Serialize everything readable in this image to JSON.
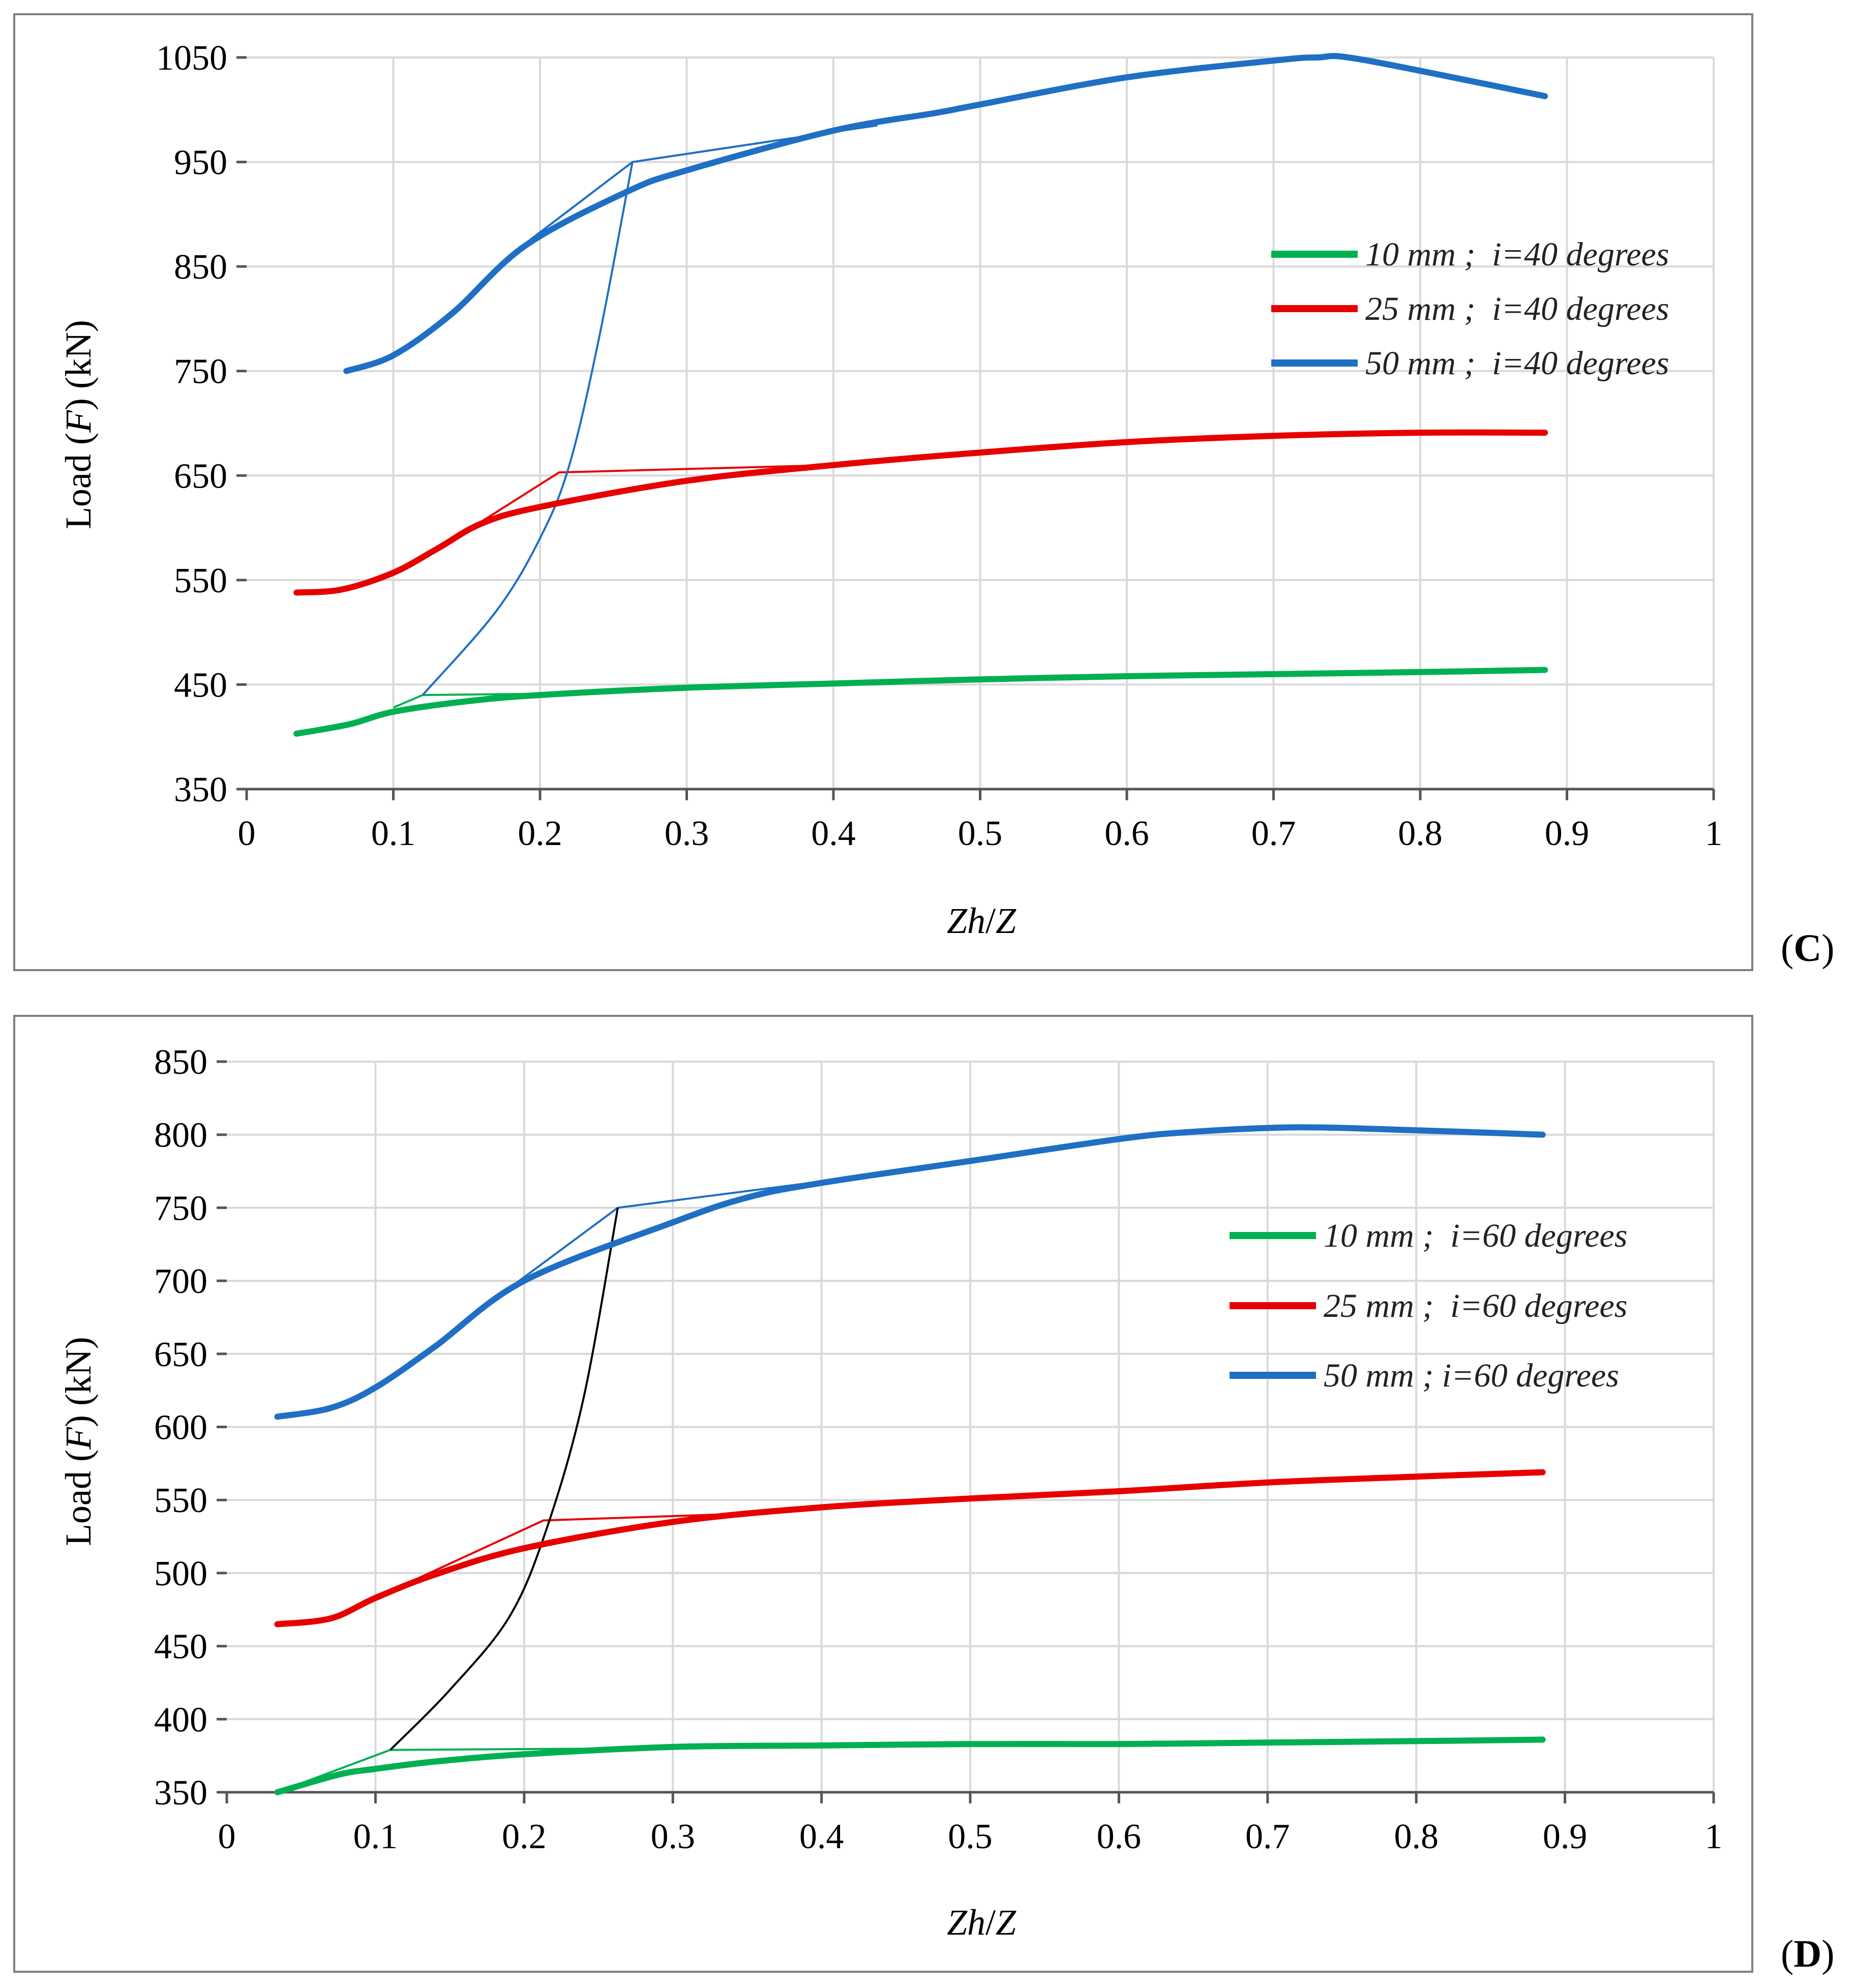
{
  "chart_data": [
    {
      "type": "line",
      "panel_label": {
        "open": "(",
        "letter": "C",
        "close": ")"
      },
      "xlabel": {
        "a": "Zh",
        "b": "/",
        "c": "Z"
      },
      "ylabel": {
        "a": "Load (",
        "b": "F",
        "c": ") (kN)"
      },
      "xlim": [
        0,
        1
      ],
      "ylim": [
        350,
        1050
      ],
      "x_ticks": [
        "0",
        "0.1",
        "0.2",
        "0.3",
        "0.4",
        "0.5",
        "0.6",
        "0.7",
        "0.8",
        "0.9",
        "1"
      ],
      "y_ticks": [
        "350",
        "450",
        "550",
        "650",
        "750",
        "850",
        "950",
        "1050"
      ],
      "legend": {
        "position": "right"
      },
      "series": [
        {
          "name": "10 mm ;  i=40 degrees",
          "color": "#00b050",
          "points": [
            [
              0.034,
              403
            ],
            [
              0.07,
              412
            ],
            [
              0.1,
              424
            ],
            [
              0.15,
              434
            ],
            [
              0.2,
              440
            ],
            [
              0.3,
              447
            ],
            [
              0.4,
              451
            ],
            [
              0.5,
              455
            ],
            [
              0.6,
              458
            ],
            [
              0.7,
              460
            ],
            [
              0.8,
              462
            ],
            [
              0.885,
              464
            ]
          ]
        },
        {
          "name": "25 mm ;  i=40 degrees",
          "color": "#e60000",
          "points": [
            [
              0.034,
              538
            ],
            [
              0.065,
              541
            ],
            [
              0.1,
              557
            ],
            [
              0.13,
              580
            ],
            [
              0.16,
              604
            ],
            [
              0.2,
              620
            ],
            [
              0.3,
              645
            ],
            [
              0.4,
              660
            ],
            [
              0.5,
              672
            ],
            [
              0.6,
              682
            ],
            [
              0.7,
              688
            ],
            [
              0.8,
              691
            ],
            [
              0.885,
              691
            ]
          ]
        },
        {
          "name": "50 mm ;  i=40 degrees",
          "color": "#1f6fc4",
          "points": [
            [
              0.068,
              750
            ],
            [
              0.1,
              765
            ],
            [
              0.14,
              805
            ],
            [
              0.19,
              870
            ],
            [
              0.26,
              922
            ],
            [
              0.3,
              942
            ],
            [
              0.4,
              980
            ],
            [
              0.47,
              997
            ],
            [
              0.5,
              1005
            ],
            [
              0.6,
              1031
            ],
            [
              0.7,
              1047
            ],
            [
              0.73,
              1050
            ],
            [
              0.76,
              1048
            ],
            [
              0.885,
              1013
            ]
          ]
        }
      ],
      "overlay_lines": [
        {
          "color": "#00b050",
          "points": [
            [
              0.1,
              428
            ],
            [
              0.12,
              440
            ],
            [
              0.25,
              442
            ]
          ]
        },
        {
          "color": "#e60000",
          "points": [
            [
              0.15,
              597
            ],
            [
              0.213,
              653
            ],
            [
              0.4,
              660
            ]
          ]
        },
        {
          "color": "#1f6fc4",
          "points": [
            [
              0.19,
              872
            ],
            [
              0.263,
              950
            ],
            [
              0.43,
              985
            ]
          ]
        }
      ],
      "envelope": {
        "color": "#1f6fc4",
        "points": [
          [
            0.12,
            440
          ],
          [
            0.17,
            520
          ],
          [
            0.2,
            590
          ],
          [
            0.22,
            660
          ],
          [
            0.24,
            780
          ],
          [
            0.263,
            950
          ]
        ]
      }
    },
    {
      "type": "line",
      "panel_label": {
        "open": "(",
        "letter": "D",
        "close": ")"
      },
      "xlabel": {
        "a": "Zh",
        "b": "/",
        "c": "Z"
      },
      "ylabel": {
        "a": "Load (",
        "b": "F",
        "c": ") (kN)"
      },
      "xlim": [
        0,
        1
      ],
      "ylim": [
        350,
        850
      ],
      "x_ticks": [
        "0",
        "0.1",
        "0.2",
        "0.3",
        "0.4",
        "0.5",
        "0.6",
        "0.7",
        "0.8",
        "0.9",
        "1"
      ],
      "y_ticks": [
        "350",
        "400",
        "450",
        "500",
        "550",
        "600",
        "650",
        "700",
        "750",
        "800",
        "850"
      ],
      "legend": {
        "position": "right"
      },
      "series": [
        {
          "name": "10 mm ;  i=60 degrees",
          "color": "#00b050",
          "points": [
            [
              0.034,
              350
            ],
            [
              0.075,
              362
            ],
            [
              0.1,
              366
            ],
            [
              0.14,
              371
            ],
            [
              0.2,
              376
            ],
            [
              0.3,
              381
            ],
            [
              0.4,
              382
            ],
            [
              0.5,
              383
            ],
            [
              0.6,
              383
            ],
            [
              0.7,
              384
            ],
            [
              0.8,
              385
            ],
            [
              0.885,
              386
            ]
          ]
        },
        {
          "name": "25 mm ;  i=60 degrees",
          "color": "#e60000",
          "points": [
            [
              0.034,
              465
            ],
            [
              0.07,
              469
            ],
            [
              0.1,
              483
            ],
            [
              0.14,
              499
            ],
            [
              0.2,
              517
            ],
            [
              0.3,
              535
            ],
            [
              0.4,
              545
            ],
            [
              0.5,
              551
            ],
            [
              0.6,
              556
            ],
            [
              0.7,
              562
            ],
            [
              0.8,
              566
            ],
            [
              0.885,
              569
            ]
          ]
        },
        {
          "name": "50 mm ; i=60 degrees",
          "color": "#1f6fc4",
          "points": [
            [
              0.034,
              607
            ],
            [
              0.07,
              613
            ],
            [
              0.1,
              627
            ],
            [
              0.14,
              655
            ],
            [
              0.2,
              700
            ],
            [
              0.3,
              740
            ],
            [
              0.35,
              757
            ],
            [
              0.4,
              767
            ],
            [
              0.5,
              782
            ],
            [
              0.6,
              797
            ],
            [
              0.65,
              802
            ],
            [
              0.72,
              805
            ],
            [
              0.8,
              803
            ],
            [
              0.885,
              800
            ]
          ]
        }
      ],
      "overlay_lines": [
        {
          "color": "#00b050",
          "points": [
            [
              0.034,
              350
            ],
            [
              0.11,
              379
            ],
            [
              0.27,
              380
            ]
          ]
        },
        {
          "color": "#e60000",
          "points": [
            [
              0.1,
              483
            ],
            [
              0.213,
              536
            ],
            [
              0.33,
              540
            ]
          ]
        },
        {
          "color": "#1f6fc4",
          "points": [
            [
              0.19,
              695
            ],
            [
              0.263,
              750
            ],
            [
              0.4,
              768
            ]
          ]
        }
      ],
      "envelope": {
        "color": "#000000",
        "points": [
          [
            0.11,
            379
          ],
          [
            0.15,
            420
          ],
          [
            0.19,
            470
          ],
          [
            0.215,
            530
          ],
          [
            0.24,
            620
          ],
          [
            0.263,
            750
          ]
        ]
      }
    }
  ]
}
